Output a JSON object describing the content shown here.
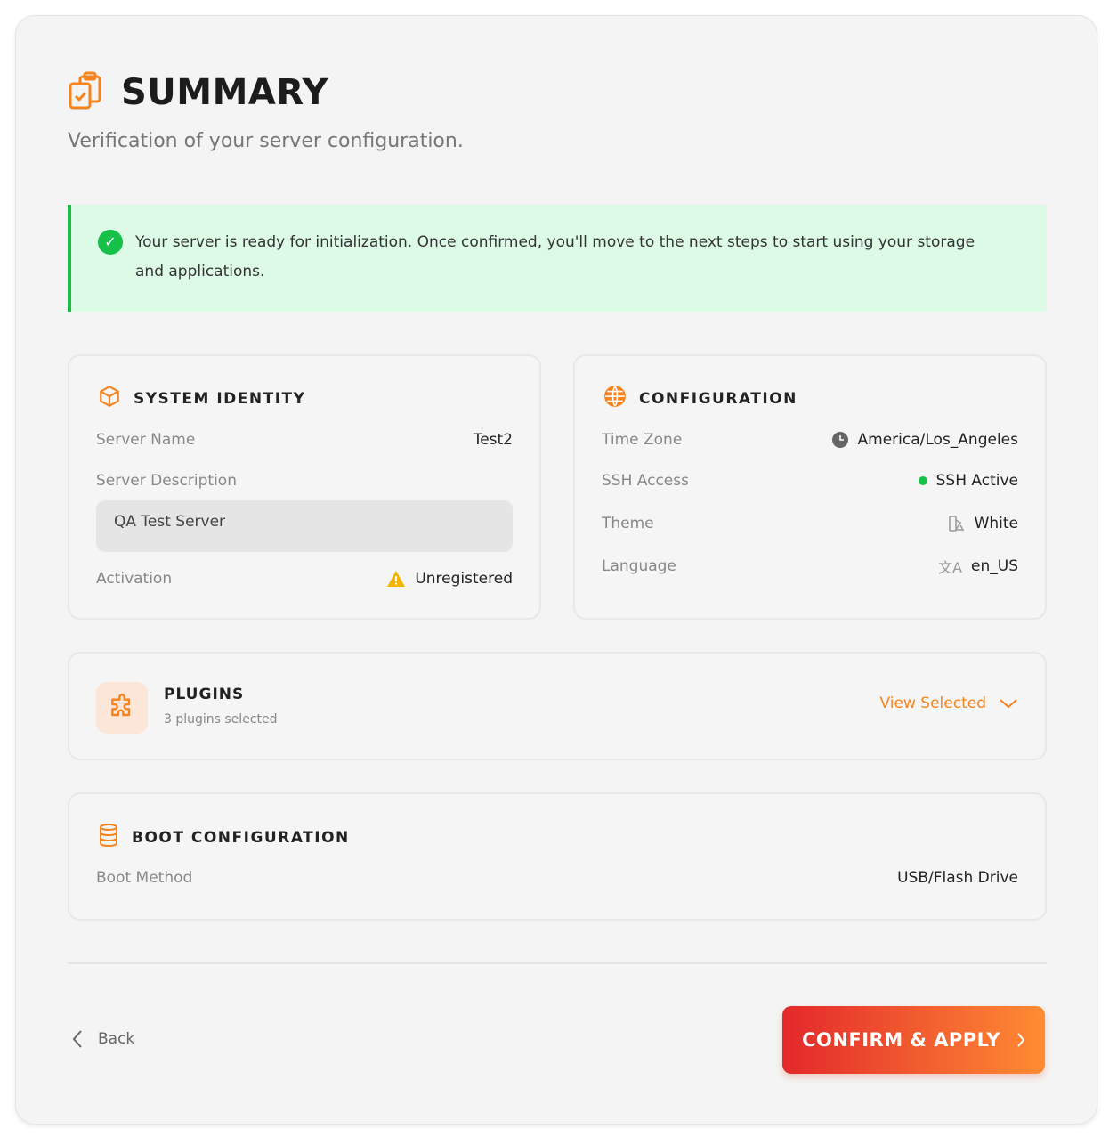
{
  "header": {
    "title": "SUMMARY",
    "subtitle": "Verification of your server configuration.",
    "icon": "clipboard-check-icon"
  },
  "alert": {
    "text": "Your server is ready for initialization. Once confirmed, you'll move to the next steps to start using your storage and applications.",
    "color": "#17c048",
    "background": "#dcfae6"
  },
  "system_identity": {
    "title": "SYSTEM IDENTITY",
    "server_name_label": "Server Name",
    "server_name": "Test2",
    "description_label": "Server Description",
    "description": "QA Test Server",
    "activation_label": "Activation",
    "activation": "Unregistered"
  },
  "configuration": {
    "title": "CONFIGURATION",
    "timezone_label": "Time Zone",
    "timezone": "America/Los_Angeles",
    "ssh_label": "SSH Access",
    "ssh": "SSH Active",
    "theme_label": "Theme",
    "theme": "White",
    "language_label": "Language",
    "language": "en_US"
  },
  "plugins": {
    "title": "PLUGINS",
    "count_text": "3 plugins selected",
    "view_label": "View Selected"
  },
  "boot": {
    "title": "BOOT CONFIGURATION",
    "method_label": "Boot Method",
    "method": "USB/Flash Drive"
  },
  "footer": {
    "back_label": "Back",
    "confirm_label": "CONFIRM & APPLY"
  },
  "colors": {
    "accent": "#f5841f",
    "success": "#17c048",
    "warning": "#f5b400"
  }
}
